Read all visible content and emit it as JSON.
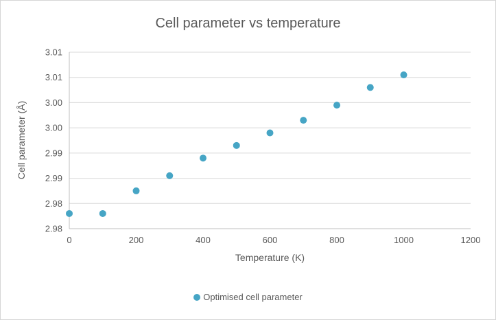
{
  "chart_data": {
    "type": "scatter",
    "title": "Cell parameter vs temperature",
    "xlabel": "Temperature (K)",
    "ylabel": "Cell parameter (Å)",
    "series": [
      {
        "name": "Optimised cell parameter",
        "x": [
          0,
          100,
          200,
          300,
          400,
          500,
          600,
          700,
          800,
          900,
          1000
        ],
        "y": [
          2.978,
          2.978,
          2.9825,
          2.9855,
          2.989,
          2.9915,
          2.994,
          2.9965,
          2.9995,
          3.003,
          3.0055
        ]
      }
    ],
    "xlim": [
      0,
      1200
    ],
    "ylim": [
      2.975,
      3.01
    ],
    "x_ticks": [
      0,
      200,
      400,
      600,
      800,
      1000,
      1200
    ],
    "x_tick_labels": [
      "0",
      "200",
      "400",
      "600",
      "800",
      "1000",
      "1200"
    ],
    "y_ticks": [
      2.975,
      2.98,
      2.985,
      2.99,
      2.995,
      3.0,
      3.005,
      3.01
    ],
    "y_tick_labels": [
      "2.98",
      "2.98",
      "2.99",
      "2.99",
      "3.00",
      "3.00",
      "3.01",
      "3.01"
    ],
    "grid": "horizontal",
    "legend_position": "bottom",
    "marker_color": "#46a5c5",
    "grid_color": "#d9d9d9",
    "axis_color": "#bfbfbf",
    "text_color": "#595959"
  }
}
